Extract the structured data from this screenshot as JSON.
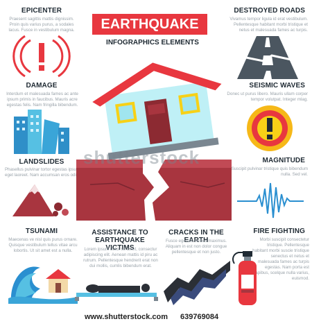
{
  "header": {
    "title": "EARTHQUAKE",
    "subtitle": "INFOGRAPHICS ELEMENTS"
  },
  "sections": {
    "epicenter": {
      "title": "EPICENTER",
      "text": "Praesent sagittis mattis dignissim. Proin quis varius purus, a sodales lacus. Fusce in vestibulum magna."
    },
    "destroyed_roads": {
      "title": "DESTROYED ROADS",
      "text": "Vivamus tempor ligula id erat vestibulum. Pellentesque habitant morbi tristique et netus et malesuada fames ac turpis."
    },
    "damage": {
      "title": "DAMAGE",
      "text": "Interdum et malesuada fames ac ante ipsum primis in faucibus. Mauris acre egestas felis. Nam fringilla bibendum."
    },
    "seismic_waves": {
      "title": "SEISMIC WAVES",
      "text": "Donec ut purus libero. Mauris ullam corper tempor volutpat. Integer mlag."
    },
    "landslides": {
      "title": "LANDSLIDES",
      "text": "Phasellus pulvinar tortor egestas ipsum eget laoreet. Nam accumsan eros odio."
    },
    "magnitude": {
      "title": "MAGNITUDE",
      "text": "Suscipit pulvinar tristique quis bibendum nulla. Sed vel."
    },
    "tsunami": {
      "title": "TSUNAMI",
      "text": "Maecenas ve nisl quis purus ornare. Quisque vestibulum tellus vitae arcu lobortis. Ut sit amet est a nulla."
    },
    "assistance": {
      "title": "ASSISTANCE TO EARTHQUAKE VICTIMS",
      "text": "Lorem ipsum dolor sit amet, consectur adipiscing elit. Aenean mattis id piru ac rutrum. Pellentesque hendrerit erat non dui mollis, cumlis bibendum erat."
    },
    "cracks": {
      "title": "CRACKS IN THE EARTH",
      "text": "Fusce egestas finibus maximus. Aliquam in est non dolor congue pellentesque et non justo."
    },
    "fire_fighting": {
      "title": "FIRE FIGHTING",
      "text": "Morbi suscipit consectetur tristique. Pellentesque habitant morbi suscie tristique senectus et netus et malesuada fames ac turpis egestas. Nam porta est dapibus, scelque nulla varius, euismod."
    }
  },
  "footer": {
    "site": "www.shutterstock.com",
    "id": "639769084"
  },
  "watermark": "shutterstock",
  "colors": {
    "accent_red": "#e8373f",
    "dark": "#1f2a33",
    "earth": "#a8353f",
    "sky_blue": "#56c0e3",
    "yellow": "#f7d117"
  }
}
